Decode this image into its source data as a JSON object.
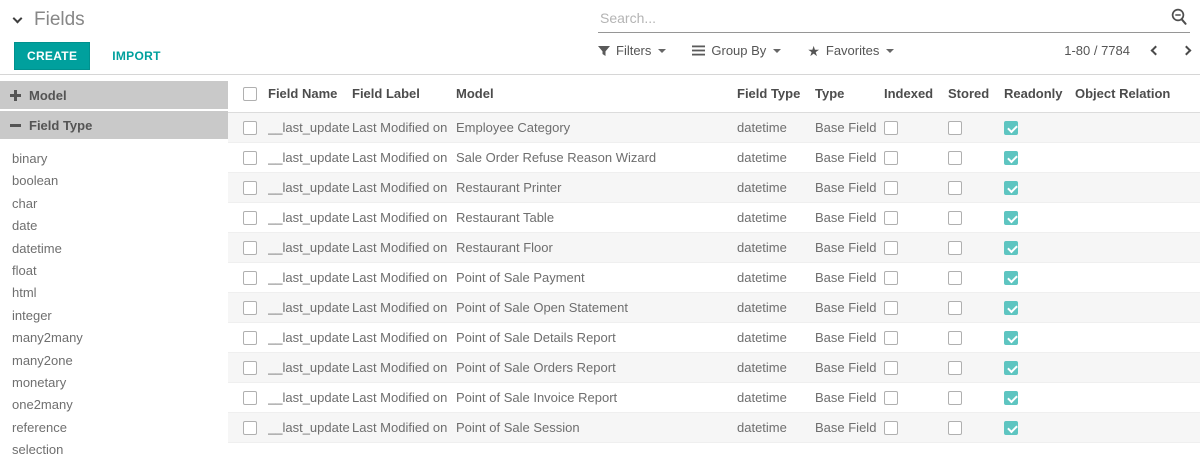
{
  "header": {
    "title": "Fields",
    "create_label": "CREATE",
    "import_label": "IMPORT",
    "search_placeholder": "Search...",
    "filters_label": "Filters",
    "group_by_label": "Group By",
    "favorites_label": "Favorites",
    "pager": "1-80 / 7784"
  },
  "icons": {
    "breadcrumb": "chevron-down",
    "search": "magnifier-minus",
    "filters": "funnel",
    "group_by": "bars",
    "favorites": "star",
    "model_section": "plus",
    "field_type_section": "minus",
    "pager_prev": "chevron-left",
    "pager_next": "chevron-right"
  },
  "colors": {
    "accent": "#00a09d",
    "checkbox_checked": "#5ec5c1",
    "sidebar_header_bg": "#c9c9c9",
    "row_stripe": "#f6f6f6"
  },
  "sidebar": {
    "sections": [
      {
        "label": "Model",
        "state": "collapsed"
      },
      {
        "label": "Field Type",
        "state": "expanded"
      }
    ],
    "field_types": [
      "binary",
      "boolean",
      "char",
      "date",
      "datetime",
      "float",
      "html",
      "integer",
      "many2many",
      "many2one",
      "monetary",
      "one2many",
      "reference",
      "selection"
    ]
  },
  "table": {
    "columns": [
      "Field Name",
      "Field Label",
      "Model",
      "Field Type",
      "Type",
      "Indexed",
      "Stored",
      "Readonly",
      "Object Relation"
    ],
    "rows": [
      {
        "field_name": "__last_update",
        "field_label": "Last Modified on",
        "model": "Employee Category",
        "field_type": "datetime",
        "type": "Base Field",
        "indexed": false,
        "stored": false,
        "readonly": true,
        "object_relation": ""
      },
      {
        "field_name": "__last_update",
        "field_label": "Last Modified on",
        "model": "Sale Order Refuse Reason Wizard",
        "field_type": "datetime",
        "type": "Base Field",
        "indexed": false,
        "stored": false,
        "readonly": true,
        "object_relation": ""
      },
      {
        "field_name": "__last_update",
        "field_label": "Last Modified on",
        "model": "Restaurant Printer",
        "field_type": "datetime",
        "type": "Base Field",
        "indexed": false,
        "stored": false,
        "readonly": true,
        "object_relation": ""
      },
      {
        "field_name": "__last_update",
        "field_label": "Last Modified on",
        "model": "Restaurant Table",
        "field_type": "datetime",
        "type": "Base Field",
        "indexed": false,
        "stored": false,
        "readonly": true,
        "object_relation": ""
      },
      {
        "field_name": "__last_update",
        "field_label": "Last Modified on",
        "model": "Restaurant Floor",
        "field_type": "datetime",
        "type": "Base Field",
        "indexed": false,
        "stored": false,
        "readonly": true,
        "object_relation": ""
      },
      {
        "field_name": "__last_update",
        "field_label": "Last Modified on",
        "model": "Point of Sale Payment",
        "field_type": "datetime",
        "type": "Base Field",
        "indexed": false,
        "stored": false,
        "readonly": true,
        "object_relation": ""
      },
      {
        "field_name": "__last_update",
        "field_label": "Last Modified on",
        "model": "Point of Sale Open Statement",
        "field_type": "datetime",
        "type": "Base Field",
        "indexed": false,
        "stored": false,
        "readonly": true,
        "object_relation": ""
      },
      {
        "field_name": "__last_update",
        "field_label": "Last Modified on",
        "model": "Point of Sale Details Report",
        "field_type": "datetime",
        "type": "Base Field",
        "indexed": false,
        "stored": false,
        "readonly": true,
        "object_relation": ""
      },
      {
        "field_name": "__last_update",
        "field_label": "Last Modified on",
        "model": "Point of Sale Orders Report",
        "field_type": "datetime",
        "type": "Base Field",
        "indexed": false,
        "stored": false,
        "readonly": true,
        "object_relation": ""
      },
      {
        "field_name": "__last_update",
        "field_label": "Last Modified on",
        "model": "Point of Sale Invoice Report",
        "field_type": "datetime",
        "type": "Base Field",
        "indexed": false,
        "stored": false,
        "readonly": true,
        "object_relation": ""
      },
      {
        "field_name": "__last_update",
        "field_label": "Last Modified on",
        "model": "Point of Sale Session",
        "field_type": "datetime",
        "type": "Base Field",
        "indexed": false,
        "stored": false,
        "readonly": true,
        "object_relation": ""
      }
    ]
  }
}
